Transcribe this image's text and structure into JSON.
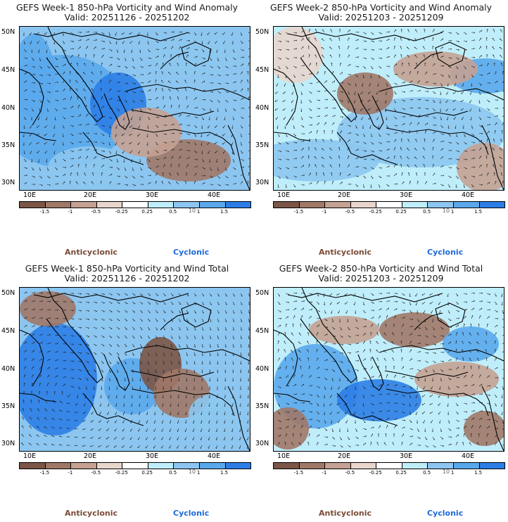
{
  "colors": {
    "anti_strong": "#7b5546",
    "anti_mid": "#a07868",
    "anti_weak": "#c4a192",
    "anti_faint": "#e8d6cd",
    "neutral": "#ffffff",
    "cyc_faint": "#bfeefa",
    "cyc_weak": "#8cc6f0",
    "cyc_mid": "#5aa8ec",
    "cyc_strong": "#2c7ee6",
    "coast": "#000000",
    "anti_label": "#7a4a35",
    "cyc_label": "#1e6ad8"
  },
  "lat_labels": [
    "50N",
    "45N",
    "40N",
    "35N",
    "30N"
  ],
  "lon_labels": [
    "10E",
    "20E",
    "30E",
    "40E"
  ],
  "colorbar_labels": [
    "-1.5",
    "-1",
    "-0.5",
    "-0.25",
    "0.25",
    "0.5",
    "1",
    "1.5"
  ],
  "colorbar_scale_note": "10",
  "legend": {
    "anticyclonic": "Anticyclonic",
    "cyclonic": "Cyclonic"
  },
  "panels": [
    {
      "title": "GEFS Week-1 850-hPa Vorticity and Wind Anomaly",
      "valid": "Valid: 20251126 - 20251202"
    },
    {
      "title": "GEFS Week-2 850-hPa Vorticity and Wind Anomaly",
      "valid": "Valid: 20251203 - 20251209"
    },
    {
      "title": "GEFS Week-1 850-hPa Vorticity and Wind Total",
      "valid": "Valid: 20251126 - 20251202"
    },
    {
      "title": "GEFS Week-2 850-hPa Vorticity and Wind Total",
      "valid": "Valid: 20251203 - 20251209"
    }
  ]
}
